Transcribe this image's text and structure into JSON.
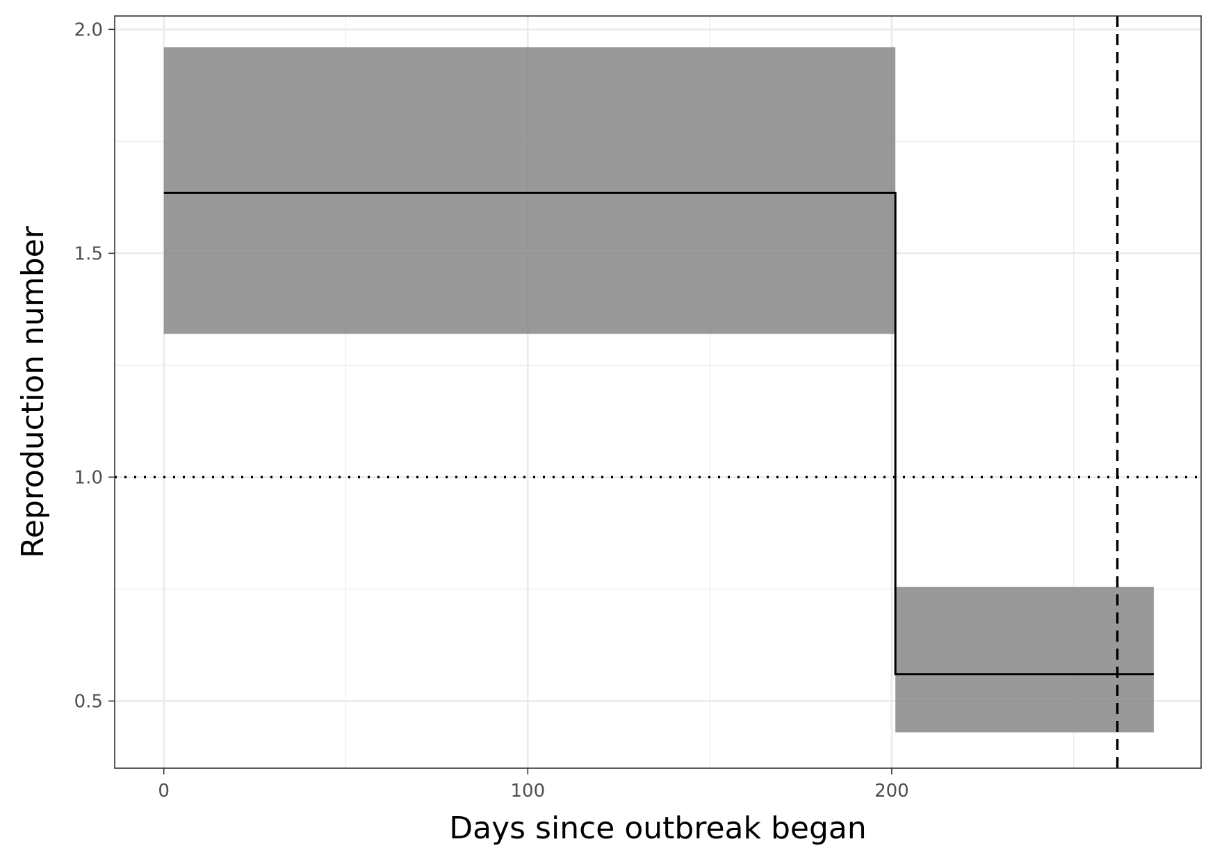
{
  "chart_data": {
    "type": "line",
    "title": "",
    "xlabel": "Days since outbreak began",
    "ylabel": "Reproduction number",
    "xlim": [
      -13.5,
      285
    ],
    "ylim": [
      0.35,
      2.03
    ],
    "x_ticks": [
      0,
      100,
      200
    ],
    "x_tick_labels": [
      "0",
      "100",
      "200"
    ],
    "x_minor_gridlines": [
      50,
      150,
      250
    ],
    "y_ticks": [
      0.5,
      1.0,
      1.5,
      2.0
    ],
    "y_tick_labels": [
      "0.5",
      "1.0",
      "1.5",
      "2.0"
    ],
    "y_minor_gridlines": [
      0.75,
      1.25,
      1.75
    ],
    "grid": true,
    "legend": "none",
    "ribbons": [
      {
        "x_start": 0,
        "x_end": 201,
        "lower": 1.32,
        "upper": 1.96,
        "color": "#808080",
        "opacity": 0.8
      },
      {
        "x_start": 201,
        "x_end": 272,
        "lower": 0.43,
        "upper": 0.755,
        "color": "#808080",
        "opacity": 0.8
      }
    ],
    "step_line": {
      "x": [
        0,
        201,
        201,
        272
      ],
      "y": [
        1.635,
        1.635,
        0.56,
        0.56
      ],
      "color": "#000000"
    },
    "reference_lines": [
      {
        "orientation": "horizontal",
        "value": 1.0,
        "style": "dotted",
        "color": "#000000"
      },
      {
        "orientation": "vertical",
        "value": 262,
        "style": "dashed",
        "color": "#000000"
      }
    ]
  }
}
